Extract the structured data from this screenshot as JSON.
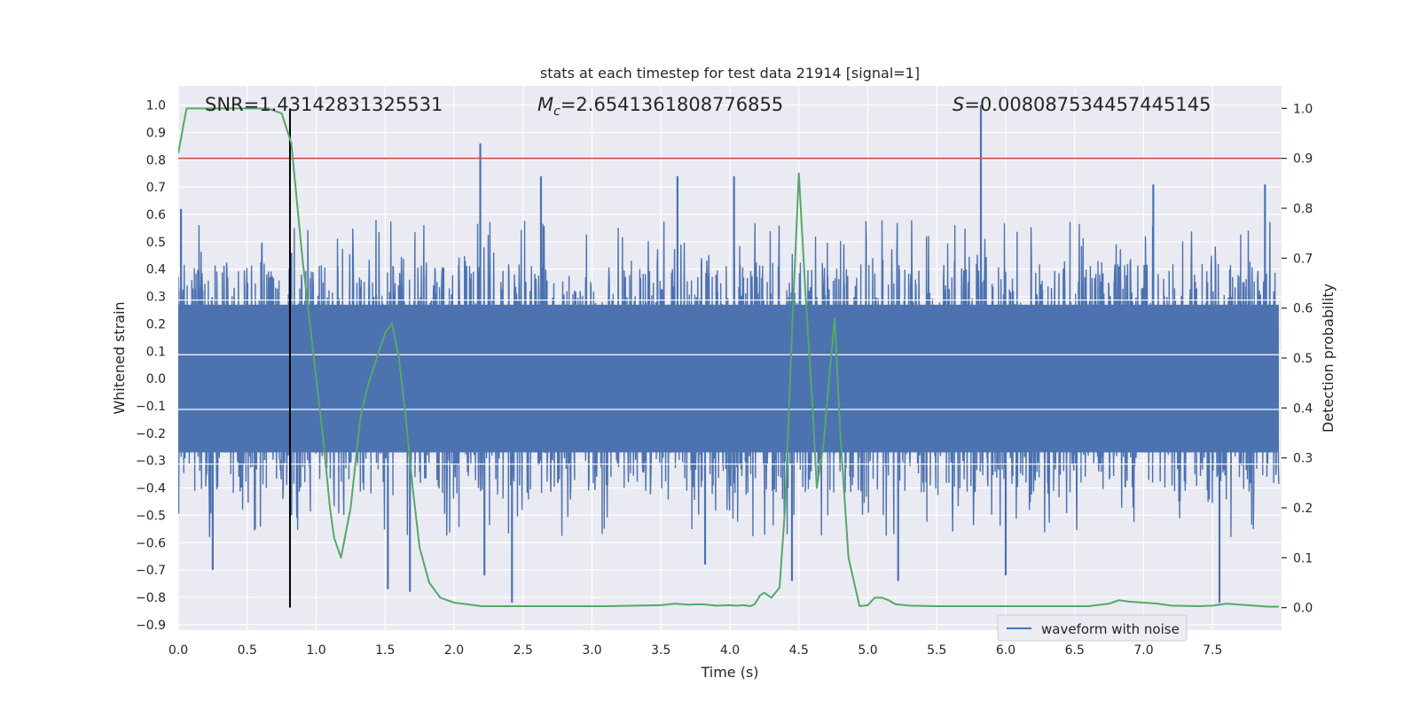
{
  "chart_data": {
    "type": "line",
    "title": "stats at each timestep for test data 21914 [signal=1]",
    "xlabel": "Time (s)",
    "ylabel": "Whitened strain",
    "ylabel_right": "Detection probability",
    "xlim": [
      0,
      8.0
    ],
    "ylim": [
      -0.92,
      1.07
    ],
    "ylim_right": [
      -0.045,
      1.045
    ],
    "x_ticks": [
      0,
      0.5,
      1.0,
      1.5,
      2.0,
      2.5,
      3.0,
      3.5,
      4.0,
      4.5,
      5.0,
      5.5,
      6.0,
      6.5,
      7.0,
      7.5
    ],
    "x_tick_labels": [
      "0.0",
      "0.5",
      "1.0",
      "1.5",
      "2.0",
      "2.5",
      "3.0",
      "3.5",
      "4.0",
      "4.5",
      "5.0",
      "5.5",
      "6.0",
      "6.5",
      "7.0",
      "7.5"
    ],
    "y_ticks": [
      1.0,
      0.9,
      0.8,
      0.7,
      0.6,
      0.5,
      0.4,
      0.3,
      0.2,
      0.1,
      0.0,
      -0.1,
      -0.2,
      -0.3,
      -0.4,
      -0.5,
      -0.6,
      -0.7,
      -0.8,
      -0.9
    ],
    "y_tick_labels": [
      "1.0",
      "0.9",
      "0.8",
      "0.7",
      "0.6",
      "0.5",
      "0.4",
      "0.3",
      "0.2",
      "0.1",
      "0.0",
      "−0.1",
      "−0.2",
      "−0.3",
      "−0.4",
      "−0.5",
      "−0.6",
      "−0.7",
      "−0.8",
      "−0.9"
    ],
    "y_right_ticks": [
      1.0,
      0.9,
      0.8,
      0.7,
      0.6,
      0.5,
      0.4,
      0.3,
      0.2,
      0.1,
      0.0
    ],
    "y_right_tick_labels": [
      "1.0",
      "0.9",
      "0.8",
      "0.7",
      "0.6",
      "0.5",
      "0.4",
      "0.3",
      "0.2",
      "0.1",
      "0.0"
    ],
    "annotations": {
      "snr": "SNR=1.43142831325531",
      "mc_symbol": "M",
      "mc_sub": "c",
      "mc_value": "=2.6541361808776855",
      "s_symbol": "S",
      "s_value": "=0.008087534457445145"
    },
    "threshold_right": 0.9,
    "vline_x": 0.81,
    "waveform": {
      "name": "waveform with noise",
      "color": "#4c72b0",
      "t_end": 7.98,
      "envelope_upper": 0.4,
      "envelope_lower": -0.4,
      "spikes": [
        {
          "x": 0.02,
          "y": 0.62
        },
        {
          "x": 0.25,
          "y": -0.7
        },
        {
          "x": 0.82,
          "y": 0.46
        },
        {
          "x": 0.82,
          "y": -0.5
        },
        {
          "x": 1.52,
          "y": -0.77
        },
        {
          "x": 1.68,
          "y": -0.78
        },
        {
          "x": 2.19,
          "y": 0.86
        },
        {
          "x": 2.22,
          "y": -0.72
        },
        {
          "x": 2.42,
          "y": -0.82
        },
        {
          "x": 2.63,
          "y": 0.74
        },
        {
          "x": 3.62,
          "y": 0.74
        },
        {
          "x": 3.82,
          "y": -0.68
        },
        {
          "x": 4.03,
          "y": 0.74
        },
        {
          "x": 4.45,
          "y": -0.74
        },
        {
          "x": 5.22,
          "y": -0.74
        },
        {
          "x": 5.82,
          "y": 1.0
        },
        {
          "x": 6.0,
          "y": -0.72
        },
        {
          "x": 7.07,
          "y": 0.71
        },
        {
          "x": 7.55,
          "y": -0.82
        },
        {
          "x": 7.88,
          "y": 0.71
        }
      ]
    },
    "probability": {
      "name": "detection probability",
      "color": "#55a868",
      "x": [
        0.0,
        0.06,
        0.12,
        0.3,
        0.5,
        0.65,
        0.75,
        0.82,
        0.9,
        0.95,
        1.0,
        1.05,
        1.1,
        1.13,
        1.18,
        1.25,
        1.32,
        1.38,
        1.44,
        1.5,
        1.55,
        1.6,
        1.65,
        1.7,
        1.75,
        1.82,
        1.9,
        2.0,
        2.2,
        2.5,
        2.8,
        3.1,
        3.5,
        3.6,
        3.7,
        3.8,
        3.9,
        4.0,
        4.05,
        4.1,
        4.15,
        4.18,
        4.22,
        4.25,
        4.3,
        4.36,
        4.4,
        4.45,
        4.5,
        4.55,
        4.6,
        4.63,
        4.68,
        4.72,
        4.76,
        4.8,
        4.86,
        4.94,
        5.0,
        5.05,
        5.1,
        5.15,
        5.2,
        5.3,
        5.5,
        5.8,
        6.0,
        6.3,
        6.6,
        6.75,
        6.82,
        6.9,
        7.0,
        7.1,
        7.2,
        7.4,
        7.5,
        7.6,
        7.7,
        7.8,
        7.9,
        7.98
      ],
      "y": [
        0.91,
        1.0,
        1.0,
        1.0,
        1.0,
        1.0,
        0.99,
        0.93,
        0.7,
        0.58,
        0.46,
        0.34,
        0.2,
        0.14,
        0.1,
        0.2,
        0.38,
        0.45,
        0.5,
        0.55,
        0.57,
        0.5,
        0.38,
        0.24,
        0.12,
        0.05,
        0.02,
        0.01,
        0.003,
        0.003,
        0.003,
        0.003,
        0.005,
        0.008,
        0.006,
        0.007,
        0.004,
        0.005,
        0.004,
        0.005,
        0.003,
        0.007,
        0.025,
        0.03,
        0.02,
        0.04,
        0.2,
        0.55,
        0.87,
        0.62,
        0.4,
        0.24,
        0.33,
        0.46,
        0.58,
        0.35,
        0.1,
        0.003,
        0.005,
        0.02,
        0.02,
        0.015,
        0.007,
        0.004,
        0.003,
        0.003,
        0.003,
        0.003,
        0.003,
        0.008,
        0.015,
        0.012,
        0.01,
        0.008,
        0.004,
        0.003,
        0.004,
        0.008,
        0.006,
        0.004,
        0.002,
        0.002
      ]
    },
    "legend": {
      "label": "waveform with noise",
      "placement": "lower-right"
    },
    "colors": {
      "background": "#eaeaf2",
      "grid": "#ffffff",
      "threshold": "#c44e52",
      "vline": "#000000",
      "waveform": "#4c72b0",
      "probability": "#55a868"
    }
  }
}
